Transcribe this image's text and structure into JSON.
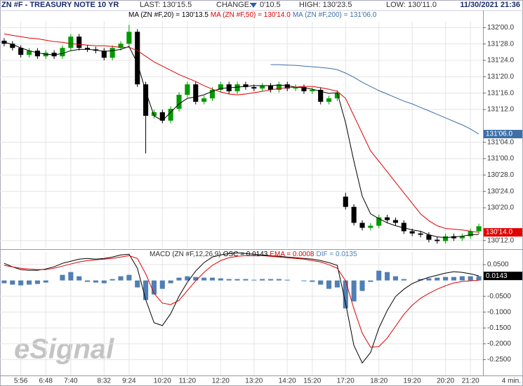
{
  "header": {
    "symbol_title": "ZN #F - TREASURY NOTE 10 YR",
    "last": "LAST: 130'15.5",
    "change_label": "CHANGE:",
    "change": "0'10.5",
    "high": "HIGH: 130'23.5",
    "low": "LOW: 130'11.0",
    "datetime": "11/30/2021 21:36"
  },
  "chart_data": [
    {
      "type": "candlestick",
      "open": [
        131.9,
        131.877,
        131.845,
        131.792,
        131.824,
        131.781,
        131.808,
        131.781,
        131.845,
        131.931,
        131.845,
        131.834,
        131.824,
        131.77,
        131.845,
        131.877,
        131.968,
        131.567,
        131.327,
        131.354,
        131.29,
        131.38,
        131.487,
        131.567,
        131.434,
        131.46,
        131.525,
        131.567,
        131.514,
        131.567,
        131.546,
        131.535,
        131.557,
        131.525,
        131.567,
        131.535,
        131.546,
        131.514,
        131.525,
        131.434,
        131.46,
        130.71,
        130.632,
        130.51,
        130.472,
        130.488,
        130.552,
        130.531,
        130.51,
        130.446,
        130.429,
        130.419,
        130.381,
        130.371,
        130.408,
        130.392,
        130.408,
        130.446
      ],
      "high": [
        131.92,
        131.897,
        131.865,
        131.844,
        131.844,
        131.828,
        131.828,
        131.865,
        131.951,
        131.951,
        131.865,
        131.854,
        131.844,
        131.865,
        131.897,
        132.021,
        131.988,
        131.587,
        131.374,
        131.374,
        131.4,
        131.507,
        131.587,
        131.587,
        131.48,
        131.545,
        131.587,
        131.587,
        131.587,
        131.587,
        131.566,
        131.577,
        131.577,
        131.587,
        131.587,
        131.566,
        131.566,
        131.545,
        131.545,
        131.48,
        131.523,
        130.74,
        130.652,
        130.53,
        130.508,
        130.572,
        130.572,
        130.551,
        130.53,
        130.466,
        130.449,
        130.439,
        130.401,
        130.428,
        130.428,
        130.428,
        130.466,
        130.504
      ],
      "low": [
        131.857,
        131.825,
        131.772,
        131.772,
        131.761,
        131.761,
        131.761,
        131.761,
        131.825,
        131.825,
        131.814,
        131.804,
        131.75,
        131.75,
        131.825,
        131.857,
        131.547,
        131.04,
        131.307,
        131.27,
        131.27,
        131.36,
        131.467,
        131.414,
        131.414,
        131.44,
        131.505,
        131.494,
        131.494,
        131.526,
        131.515,
        131.515,
        131.505,
        131.505,
        131.515,
        131.515,
        131.494,
        131.494,
        131.414,
        131.414,
        131.44,
        130.612,
        130.49,
        130.452,
        130.452,
        130.468,
        130.511,
        130.49,
        130.426,
        130.409,
        130.399,
        130.361,
        130.351,
        130.351,
        130.372,
        130.372,
        130.388,
        130.426
      ],
      "close": [
        131.877,
        131.845,
        131.792,
        131.824,
        131.781,
        131.808,
        131.781,
        131.845,
        131.931,
        131.845,
        131.834,
        131.824,
        131.77,
        131.845,
        131.877,
        131.968,
        131.567,
        131.327,
        131.354,
        131.29,
        131.38,
        131.487,
        131.567,
        131.434,
        131.46,
        131.525,
        131.567,
        131.514,
        131.567,
        131.546,
        131.535,
        131.557,
        131.525,
        131.567,
        131.535,
        131.546,
        131.514,
        131.525,
        131.434,
        131.46,
        131.503,
        130.632,
        130.51,
        130.472,
        130.488,
        130.552,
        130.531,
        130.51,
        130.446,
        130.429,
        130.419,
        130.381,
        130.371,
        130.408,
        130.392,
        130.408,
        130.446,
        130.484
      ],
      "up_color": "#009a00",
      "down_color": "#000000",
      "series": [
        {
          "name": "MA (ZN #F,20) = 130'13.5",
          "color": "#000000",
          "values": [
            131.888,
            131.872,
            131.845,
            131.824,
            131.808,
            131.797,
            131.792,
            131.802,
            131.824,
            131.834,
            131.834,
            131.829,
            131.818,
            131.824,
            131.834,
            131.856,
            131.728,
            131.514,
            131.327,
            131.29,
            131.354,
            131.418,
            131.46,
            131.471,
            131.487,
            131.514,
            131.535,
            131.541,
            131.546,
            131.551,
            131.557,
            131.557,
            131.557,
            131.562,
            131.557,
            131.546,
            131.541,
            131.53,
            131.514,
            131.498,
            131.503,
            131.274,
            130.98,
            130.713,
            130.579,
            130.542,
            130.51,
            130.488,
            130.472,
            130.456,
            130.446,
            130.419,
            130.403,
            130.397,
            130.403,
            130.408,
            130.419,
            130.4219
          ]
        },
        {
          "name": "MA (ZN #F,50) = 130'14.0",
          "color": "#e00000",
          "last_label": "130'14.0",
          "values": [
            131.952,
            131.941,
            131.931,
            131.92,
            131.915,
            131.904,
            131.893,
            131.888,
            131.877,
            131.872,
            131.866,
            131.861,
            131.861,
            131.856,
            131.85,
            131.85,
            131.824,
            131.781,
            131.738,
            131.706,
            131.674,
            131.642,
            131.615,
            131.589,
            131.557,
            131.53,
            131.509,
            131.493,
            131.487,
            131.493,
            131.503,
            131.514,
            131.525,
            131.535,
            131.541,
            131.546,
            131.551,
            131.551,
            131.541,
            131.53,
            131.514,
            131.46,
            131.327,
            131.193,
            131.06,
            130.98,
            130.9,
            130.819,
            130.739,
            130.659,
            130.579,
            130.526,
            130.488,
            130.467,
            130.462,
            130.456,
            130.446,
            130.4375
          ]
        },
        {
          "name": "MA (ZN #F,200) = 131'06.0",
          "color": "#3d6fa8",
          "last_label": "131'06.0",
          "values": [
            null,
            null,
            null,
            null,
            null,
            null,
            null,
            null,
            null,
            null,
            null,
            null,
            null,
            null,
            null,
            null,
            null,
            null,
            null,
            null,
            null,
            null,
            null,
            null,
            null,
            null,
            null,
            null,
            null,
            null,
            null,
            null,
            131.717,
            131.717,
            131.714,
            131.712,
            131.706,
            131.701,
            131.696,
            131.69,
            131.679,
            131.653,
            131.621,
            131.583,
            131.551,
            131.519,
            131.493,
            131.466,
            131.439,
            131.418,
            131.391,
            131.365,
            131.338,
            131.311,
            131.284,
            131.258,
            131.226,
            131.1875
          ]
        }
      ],
      "ylim": [
        130.32,
        132.05
      ],
      "yticks": [
        {
          "value": 132,
          "label": "132'00.0"
        },
        {
          "value": 131.875,
          "label": "131'28.0"
        },
        {
          "value": 131.75,
          "label": "131'24.0"
        },
        {
          "value": 131.625,
          "label": "131'20.0"
        },
        {
          "value": 131.5,
          "label": "131'16.0"
        },
        {
          "value": 131.375,
          "label": "131'12.0"
        },
        {
          "value": 131.125,
          "label": "131'04.0"
        },
        {
          "value": 131,
          "label": "131'00.0"
        },
        {
          "value": 130.875,
          "label": "130'28.0"
        },
        {
          "value": 130.75,
          "label": "130'24.0"
        },
        {
          "value": 130.625,
          "label": "130'20.0"
        },
        {
          "value": 130.375,
          "label": "130'12.0"
        }
      ],
      "grid": true
    },
    {
      "type": "macd",
      "title": "MACD (ZN #F,12,26,9)",
      "categories": [
        null,
        null,
        "5:56",
        null,
        null,
        "6:48",
        null,
        null,
        "7:40",
        null,
        null,
        null,
        "8:32",
        null,
        null,
        "9:24",
        null,
        null,
        null,
        "10:20",
        null,
        null,
        "11:20",
        null,
        null,
        null,
        "12:20",
        null,
        null,
        null,
        "13:20",
        null,
        null,
        null,
        "14:20",
        null,
        null,
        "15:20",
        null,
        null,
        null,
        "17:20",
        null,
        null,
        null,
        "18:20",
        null,
        null,
        null,
        "19:20",
        null,
        null,
        null,
        "20:20",
        null,
        null,
        "21:20",
        null
      ],
      "series": [
        {
          "name": "OSC = 0.0143",
          "color": "#000000",
          "last_label": "0.0143",
          "values": [
            0.0541,
            0.043,
            0.0342,
            0.032,
            0.032,
            0.0364,
            0.043,
            0.0541,
            0.0607,
            0.0673,
            0.0695,
            0.0673,
            0.0695,
            0.074,
            0.0806,
            0.0828,
            0.0386,
            -0.0607,
            -0.1336,
            -0.1424,
            -0.1049,
            -0.0497,
            -0.0055,
            0.0298,
            0.0563,
            0.074,
            0.0806,
            0.085,
            0.0872,
            0.085,
            0.0828,
            0.0806,
            0.0784,
            0.0762,
            0.074,
            0.0717,
            0.0695,
            0.0673,
            0.0629,
            0.0563,
            0.0475,
            -0.0717,
            -0.2053,
            -0.2605,
            -0.2274,
            -0.1501,
            -0.0949,
            -0.0508,
            -0.0276,
            -0.0099,
            0.0011,
            0.0099,
            0.0166,
            0.0232,
            0.0276,
            0.0254,
            0.021,
            0.0143
          ]
        },
        {
          "name": "EMA = 0.0008",
          "color": "#e00000",
          "values": [
            0.0475,
            0.043,
            0.0386,
            0.0364,
            0.0342,
            0.0342,
            0.0386,
            0.0453,
            0.0519,
            0.0585,
            0.0629,
            0.0651,
            0.0673,
            0.0695,
            0.074,
            0.0784,
            0.0695,
            0.021,
            -0.0408,
            -0.0717,
            -0.0762,
            -0.0629,
            -0.032,
            -0.0011,
            0.0254,
            0.0475,
            0.0629,
            0.0717,
            0.0762,
            0.0784,
            0.0784,
            0.0784,
            0.0762,
            0.074,
            0.0717,
            0.0695,
            0.0673,
            0.0629,
            0.0585,
            0.0497,
            0.0386,
            -0.0011,
            -0.0894,
            -0.1666,
            -0.2108,
            -0.2086,
            -0.1821,
            -0.1446,
            -0.1071,
            -0.0784,
            -0.0563,
            -0.0408,
            -0.0276,
            -0.0166,
            -0.0077,
            -0.0033,
            -0.0011,
            0.0008
          ]
        },
        {
          "name": "DIF = 0.0135",
          "color": "#4f7fb5",
          "style": "histogram",
          "values": [
            -0.0088,
            -0.0132,
            -0.0155,
            -0.0132,
            -0.011,
            -0.0066,
            0,
            0.0177,
            0.0265,
            0.0132,
            -0.0044,
            -0.0066,
            -0.0088,
            0.0044,
            0.0132,
            0.0177,
            -0.0221,
            -0.0618,
            -0.0442,
            -0.0265,
            -0.0088,
            0.0088,
            0.0132,
            0.011,
            0.0088,
            0.0088,
            0.0066,
            0.0044,
            0.0044,
            0.0044,
            0.0022,
            0.0044,
            0.0044,
            0.0044,
            0.0022,
            0,
            -0.0022,
            -0.0044,
            -0.0132,
            -0.0265,
            -0.0221,
            -0.0883,
            -0.0662,
            -0.0331,
            -0.0044,
            0.0309,
            0.0265,
            0.0132,
            0.0044,
            0,
            0.0044,
            0.0066,
            0.0088,
            0.011,
            0.011,
            0.0132,
            0.0132,
            0.0135
          ]
        }
      ],
      "ylim": [
        -0.3,
        0.09
      ],
      "yticks": [
        {
          "value": 0.05,
          "label": "0.0500"
        },
        {
          "value": -0.05,
          "label": "-0.0500"
        },
        {
          "value": -0.1,
          "label": "-0.1000"
        },
        {
          "value": -0.15,
          "label": "-0.1500"
        },
        {
          "value": -0.2,
          "label": "-0.2000"
        },
        {
          "value": -0.25,
          "label": "-0.2500"
        }
      ],
      "grid": true
    }
  ],
  "footer": {
    "interval": "4 min.",
    "logo": "eSignal"
  }
}
